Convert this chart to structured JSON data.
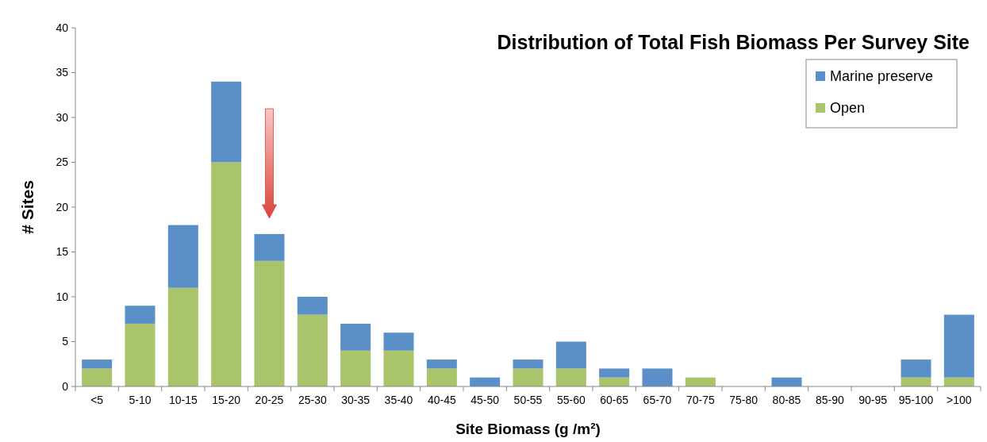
{
  "chart_data": {
    "type": "bar",
    "stacked": true,
    "title": "Distribution of Total Fish Biomass Per Survey Site",
    "xlabel": "Site Biomass (g /m²)",
    "ylabel": "# Sites",
    "categories": [
      "<5",
      "5-10",
      "10-15",
      "15-20",
      "20-25",
      "25-30",
      "30-35",
      "35-40",
      "40-45",
      "45-50",
      "50-55",
      "55-60",
      "60-65",
      "65-70",
      "70-75",
      "75-80",
      "80-85",
      "85-90",
      "90-95",
      "95-100",
      ">100"
    ],
    "series": [
      {
        "name": "Open",
        "color": "#a9c46a",
        "values": [
          2,
          7,
          11,
          25,
          14,
          8,
          4,
          4,
          2,
          0,
          2,
          2,
          1,
          0,
          1,
          0,
          0,
          0,
          0,
          1,
          1
        ]
      },
      {
        "name": "Marine preserve",
        "color": "#5b8fc7",
        "values": [
          1,
          2,
          7,
          9,
          3,
          2,
          3,
          2,
          1,
          1,
          1,
          3,
          1,
          2,
          0,
          0,
          1,
          0,
          0,
          2,
          7
        ]
      }
    ],
    "ylim": [
      0,
      40
    ],
    "yticks": [
      0,
      5,
      10,
      15,
      20,
      25,
      30,
      35,
      40
    ],
    "grid": false,
    "legend": "top right"
  }
}
